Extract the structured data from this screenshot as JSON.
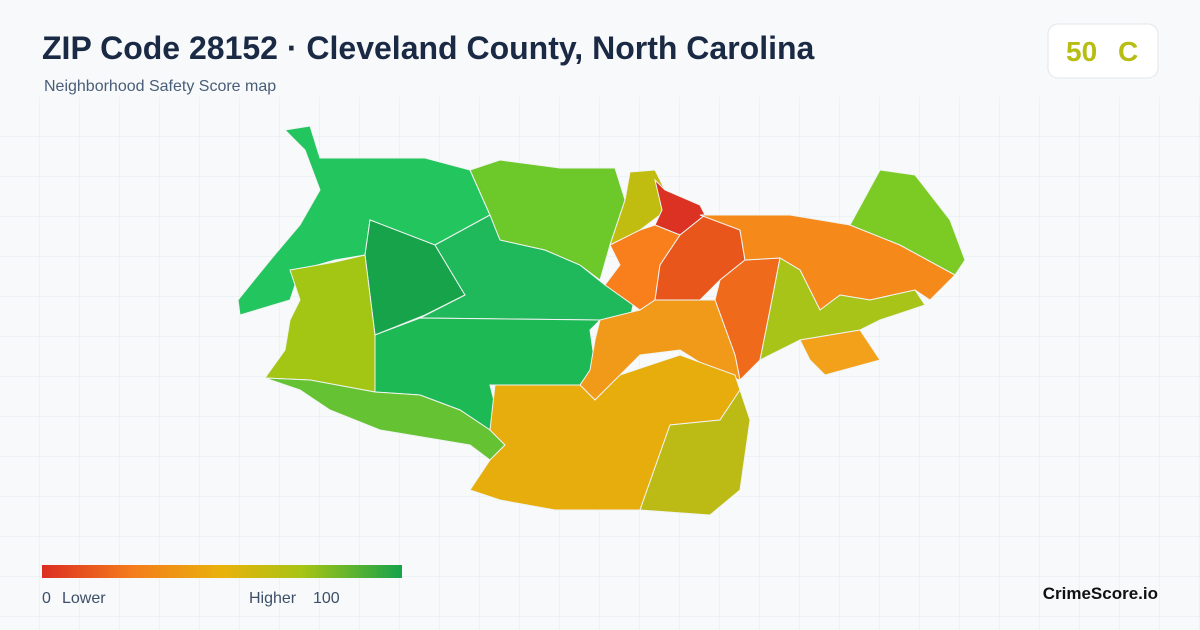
{
  "header": {
    "title": "ZIP Code 28152 · Cleveland County, North Carolina",
    "subtitle": "Neighborhood Safety Score map"
  },
  "score_badge": {
    "score": "50",
    "grade": "C"
  },
  "legend": {
    "min": "0",
    "min_label": "Lower",
    "max_label": "Higher",
    "max": "100"
  },
  "brand": "CrimeScore.io"
}
